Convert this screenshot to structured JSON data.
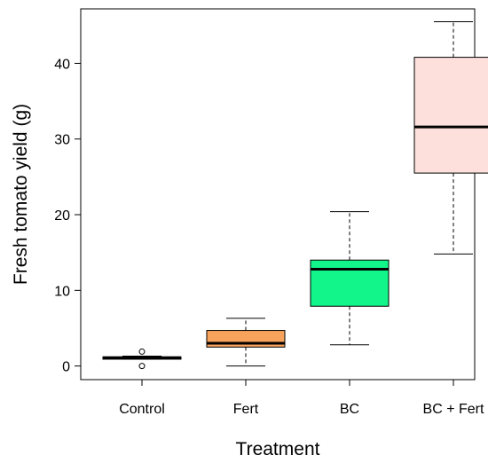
{
  "chart_data": {
    "type": "box",
    "xlabel": "Treatment",
    "ylabel": "Fresh tomato yield (g)",
    "categories": [
      "Control",
      "Fert",
      "BC",
      "BC + Fert"
    ],
    "ylim": [
      -1.8,
      47.2
    ],
    "yticks": [
      0,
      10,
      20,
      30,
      40
    ],
    "grid": false,
    "boxes": [
      {
        "category": "Control",
        "min": 0.9,
        "q1": 0.9,
        "median": 1.1,
        "q3": 1.2,
        "max": 1.3,
        "outliers": [
          1.9,
          0.0
        ],
        "color": "#5ad6c8"
      },
      {
        "category": "Fert",
        "min": 0.0,
        "q1": 2.5,
        "median": 3.0,
        "q3": 4.7,
        "max": 6.3,
        "outliers": [],
        "color": "#f7a35c"
      },
      {
        "category": "BC",
        "min": 2.8,
        "q1": 7.9,
        "median": 12.8,
        "q3": 14.0,
        "max": 20.4,
        "outliers": [],
        "color": "#12f58a"
      },
      {
        "category": "BC + Fert",
        "min": 14.8,
        "q1": 25.5,
        "median": 31.6,
        "q3": 40.8,
        "max": 45.5,
        "outliers": [],
        "color": "#fde0dc"
      }
    ]
  }
}
